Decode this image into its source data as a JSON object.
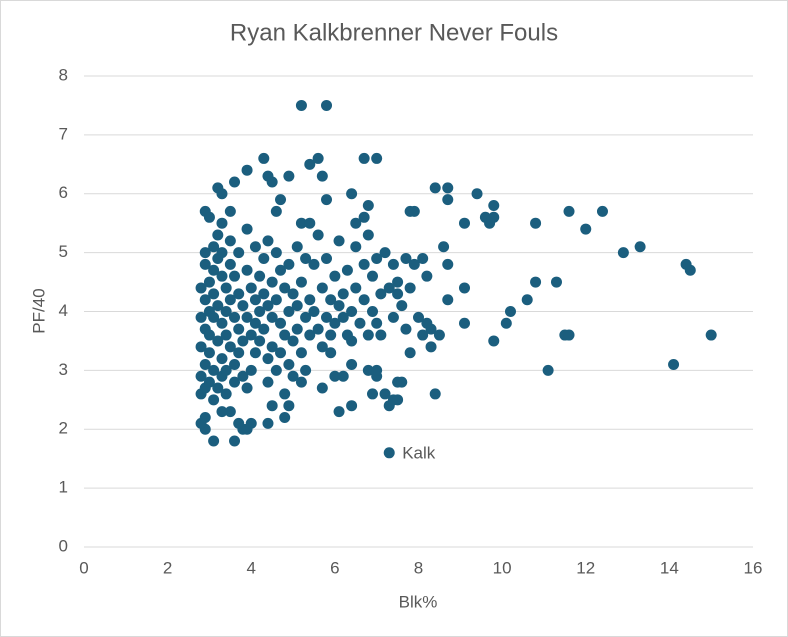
{
  "chart_data": {
    "type": "scatter",
    "title": "Ryan Kalkbrenner Never Fouls",
    "x_label": "Blk%",
    "y_label": "PF/40",
    "xlim": [
      0,
      16
    ],
    "xticks": [
      0,
      2,
      4,
      6,
      8,
      10,
      12,
      14,
      16
    ],
    "ylim": [
      0,
      8
    ],
    "yticks": [
      0,
      1,
      2,
      3,
      4,
      5,
      6,
      7,
      8
    ],
    "grid": true,
    "series": [
      {
        "color": "#1b5e7e",
        "points": [
          [
            5.2,
            7.5
          ],
          [
            5.8,
            7.5
          ],
          [
            4.3,
            6.6
          ],
          [
            5.6,
            6.6
          ],
          [
            6.7,
            6.6
          ],
          [
            7.0,
            6.6
          ],
          [
            5.4,
            6.5
          ],
          [
            5.7,
            6.3
          ],
          [
            4.4,
            6.3
          ],
          [
            4.9,
            6.3
          ],
          [
            3.9,
            6.4
          ],
          [
            3.6,
            6.2
          ],
          [
            4.5,
            6.2
          ],
          [
            3.2,
            6.1
          ],
          [
            3.3,
            6.0
          ],
          [
            6.4,
            6.0
          ],
          [
            8.4,
            6.1
          ],
          [
            8.7,
            6.1
          ],
          [
            9.4,
            6.0
          ],
          [
            8.7,
            5.9
          ],
          [
            5.8,
            5.9
          ],
          [
            6.8,
            5.8
          ],
          [
            9.8,
            5.8
          ],
          [
            7.8,
            5.7
          ],
          [
            7.9,
            5.7
          ],
          [
            9.6,
            5.6
          ],
          [
            9.8,
            5.6
          ],
          [
            11.6,
            5.7
          ],
          [
            12.4,
            5.7
          ],
          [
            9.7,
            5.5
          ],
          [
            10.8,
            5.5
          ],
          [
            12.0,
            5.4
          ],
          [
            9.1,
            5.5
          ],
          [
            6.7,
            5.6
          ],
          [
            6.5,
            5.5
          ],
          [
            5.2,
            5.5
          ],
          [
            5.4,
            5.5
          ],
          [
            4.6,
            5.7
          ],
          [
            4.7,
            5.9
          ],
          [
            2.9,
            5.7
          ],
          [
            3.0,
            5.6
          ],
          [
            3.5,
            5.7
          ],
          [
            3.3,
            5.5
          ],
          [
            13.3,
            5.1
          ],
          [
            12.9,
            5.0
          ],
          [
            14.4,
            4.8
          ],
          [
            14.5,
            4.7
          ],
          [
            8.6,
            5.1
          ],
          [
            8.7,
            4.8
          ],
          [
            10.8,
            4.5
          ],
          [
            11.3,
            4.5
          ],
          [
            9.1,
            4.4
          ],
          [
            8.7,
            4.2
          ],
          [
            10.6,
            4.2
          ],
          [
            10.2,
            4.0
          ],
          [
            10.1,
            3.8
          ],
          [
            9.1,
            3.8
          ],
          [
            11.5,
            3.6
          ],
          [
            11.6,
            3.6
          ],
          [
            15.0,
            3.6
          ],
          [
            9.8,
            3.5
          ],
          [
            11.1,
            3.0
          ],
          [
            14.1,
            3.1
          ],
          [
            8.4,
            2.6
          ],
          [
            8.1,
            3.6
          ],
          [
            8.3,
            3.4
          ],
          [
            8.5,
            3.6
          ],
          [
            8.2,
            3.8
          ],
          [
            8.3,
            3.7
          ],
          [
            7.8,
            3.3
          ],
          [
            7.7,
            3.7
          ],
          [
            7.5,
            4.5
          ],
          [
            7.6,
            4.1
          ],
          [
            8.0,
            3.9
          ],
          [
            7.3,
            2.4
          ],
          [
            7.4,
            2.5
          ],
          [
            7.5,
            2.5
          ],
          [
            6.9,
            2.6
          ],
          [
            7.0,
            2.9
          ],
          [
            6.8,
            3.0
          ],
          [
            7.0,
            3.0
          ],
          [
            6.4,
            2.4
          ],
          [
            6.1,
            2.3
          ],
          [
            6.2,
            2.9
          ],
          [
            6.0,
            2.9
          ],
          [
            5.7,
            2.7
          ],
          [
            5.9,
            3.3
          ],
          [
            6.4,
            3.5
          ],
          [
            6.4,
            3.1
          ],
          [
            7.5,
            2.8
          ],
          [
            7.6,
            2.8
          ],
          [
            7.2,
            2.6
          ],
          [
            5.2,
            2.8
          ],
          [
            4.9,
            2.4
          ],
          [
            4.5,
            2.4
          ],
          [
            4.4,
            2.1
          ],
          [
            4.8,
            2.2
          ],
          [
            4.0,
            2.1
          ],
          [
            3.8,
            2.0
          ],
          [
            3.7,
            2.1
          ],
          [
            3.6,
            1.8
          ],
          [
            3.1,
            1.8
          ],
          [
            2.9,
            2.0
          ],
          [
            2.8,
            2.1
          ],
          [
            2.9,
            2.2
          ],
          [
            3.9,
            2.0
          ],
          [
            3.5,
            2.3
          ],
          [
            3.3,
            2.3
          ],
          [
            2.8,
            4.4
          ],
          [
            2.8,
            3.9
          ],
          [
            2.8,
            3.4
          ],
          [
            2.8,
            2.9
          ],
          [
            2.8,
            2.6
          ],
          [
            2.9,
            5.0
          ],
          [
            2.9,
            4.8
          ],
          [
            2.9,
            4.2
          ],
          [
            2.9,
            3.7
          ],
          [
            2.9,
            3.1
          ],
          [
            2.9,
            2.7
          ],
          [
            3.0,
            4.5
          ],
          [
            3.0,
            4.0
          ],
          [
            3.0,
            3.6
          ],
          [
            3.0,
            3.3
          ],
          [
            3.0,
            2.8
          ],
          [
            3.1,
            5.1
          ],
          [
            3.1,
            4.7
          ],
          [
            3.1,
            4.3
          ],
          [
            3.1,
            3.9
          ],
          [
            3.1,
            3.0
          ],
          [
            3.1,
            2.5
          ],
          [
            3.2,
            5.3
          ],
          [
            3.2,
            4.9
          ],
          [
            3.2,
            4.1
          ],
          [
            3.2,
            3.5
          ],
          [
            3.2,
            2.7
          ],
          [
            3.3,
            5.0
          ],
          [
            3.3,
            4.6
          ],
          [
            3.3,
            3.8
          ],
          [
            3.3,
            3.2
          ],
          [
            3.3,
            2.9
          ],
          [
            3.4,
            4.4
          ],
          [
            3.4,
            4.0
          ],
          [
            3.4,
            3.6
          ],
          [
            3.4,
            3.0
          ],
          [
            3.4,
            2.6
          ],
          [
            3.5,
            5.2
          ],
          [
            3.5,
            4.8
          ],
          [
            3.5,
            4.2
          ],
          [
            3.5,
            3.4
          ],
          [
            3.6,
            4.6
          ],
          [
            3.6,
            3.9
          ],
          [
            3.6,
            3.1
          ],
          [
            3.6,
            2.8
          ],
          [
            3.7,
            5.0
          ],
          [
            3.7,
            4.3
          ],
          [
            3.7,
            3.7
          ],
          [
            3.7,
            3.3
          ],
          [
            3.8,
            4.1
          ],
          [
            3.8,
            3.5
          ],
          [
            3.8,
            2.9
          ],
          [
            3.9,
            5.4
          ],
          [
            3.9,
            4.7
          ],
          [
            3.9,
            3.9
          ],
          [
            3.9,
            2.7
          ],
          [
            4.0,
            4.4
          ],
          [
            4.0,
            3.6
          ],
          [
            4.0,
            3.0
          ],
          [
            4.1,
            5.1
          ],
          [
            4.1,
            4.2
          ],
          [
            4.1,
            3.8
          ],
          [
            4.1,
            3.3
          ],
          [
            4.2,
            4.6
          ],
          [
            4.2,
            4.0
          ],
          [
            4.2,
            3.5
          ],
          [
            4.3,
            4.9
          ],
          [
            4.3,
            4.3
          ],
          [
            4.3,
            3.7
          ],
          [
            4.4,
            5.2
          ],
          [
            4.4,
            4.1
          ],
          [
            4.4,
            3.2
          ],
          [
            4.4,
            2.8
          ],
          [
            4.5,
            4.5
          ],
          [
            4.5,
            3.9
          ],
          [
            4.5,
            3.4
          ],
          [
            4.6,
            5.0
          ],
          [
            4.6,
            4.2
          ],
          [
            4.6,
            3.0
          ],
          [
            4.7,
            4.7
          ],
          [
            4.7,
            3.8
          ],
          [
            4.7,
            3.3
          ],
          [
            4.8,
            4.4
          ],
          [
            4.8,
            3.6
          ],
          [
            4.8,
            2.6
          ],
          [
            4.9,
            4.8
          ],
          [
            4.9,
            4.0
          ],
          [
            4.9,
            3.1
          ],
          [
            5.0,
            4.3
          ],
          [
            5.0,
            3.5
          ],
          [
            5.0,
            2.9
          ],
          [
            5.1,
            5.1
          ],
          [
            5.1,
            4.1
          ],
          [
            5.1,
            3.7
          ],
          [
            5.2,
            4.5
          ],
          [
            5.2,
            3.3
          ],
          [
            5.3,
            4.9
          ],
          [
            5.3,
            3.9
          ],
          [
            5.3,
            3.0
          ],
          [
            5.4,
            4.2
          ],
          [
            5.4,
            3.6
          ],
          [
            5.5,
            4.8
          ],
          [
            5.5,
            4.0
          ],
          [
            5.6,
            3.7
          ],
          [
            5.6,
            5.3
          ],
          [
            5.7,
            4.4
          ],
          [
            5.7,
            3.4
          ],
          [
            5.8,
            4.9
          ],
          [
            5.8,
            3.9
          ],
          [
            5.9,
            4.2
          ],
          [
            5.9,
            3.6
          ],
          [
            6.0,
            4.6
          ],
          [
            6.0,
            3.8
          ],
          [
            6.1,
            5.2
          ],
          [
            6.1,
            4.1
          ],
          [
            6.2,
            3.9
          ],
          [
            6.2,
            4.3
          ],
          [
            6.3,
            4.7
          ],
          [
            6.3,
            3.6
          ],
          [
            6.4,
            4.0
          ],
          [
            6.5,
            5.1
          ],
          [
            6.5,
            4.4
          ],
          [
            6.6,
            3.8
          ],
          [
            6.7,
            4.2
          ],
          [
            6.7,
            4.8
          ],
          [
            6.8,
            5.3
          ],
          [
            6.8,
            3.6
          ],
          [
            6.9,
            4.6
          ],
          [
            6.9,
            4.0
          ],
          [
            7.0,
            4.9
          ],
          [
            7.0,
            3.8
          ],
          [
            7.1,
            4.3
          ],
          [
            7.1,
            3.6
          ],
          [
            7.2,
            5.0
          ],
          [
            7.3,
            4.4
          ],
          [
            7.4,
            4.8
          ],
          [
            7.4,
            3.9
          ],
          [
            7.5,
            4.3
          ],
          [
            7.7,
            4.9
          ],
          [
            7.8,
            4.4
          ],
          [
            7.9,
            4.8
          ],
          [
            8.1,
            4.9
          ],
          [
            8.2,
            4.6
          ]
        ]
      }
    ],
    "annotations": [
      {
        "text": "Kalk",
        "x": 7.3,
        "y": 1.6
      }
    ]
  }
}
